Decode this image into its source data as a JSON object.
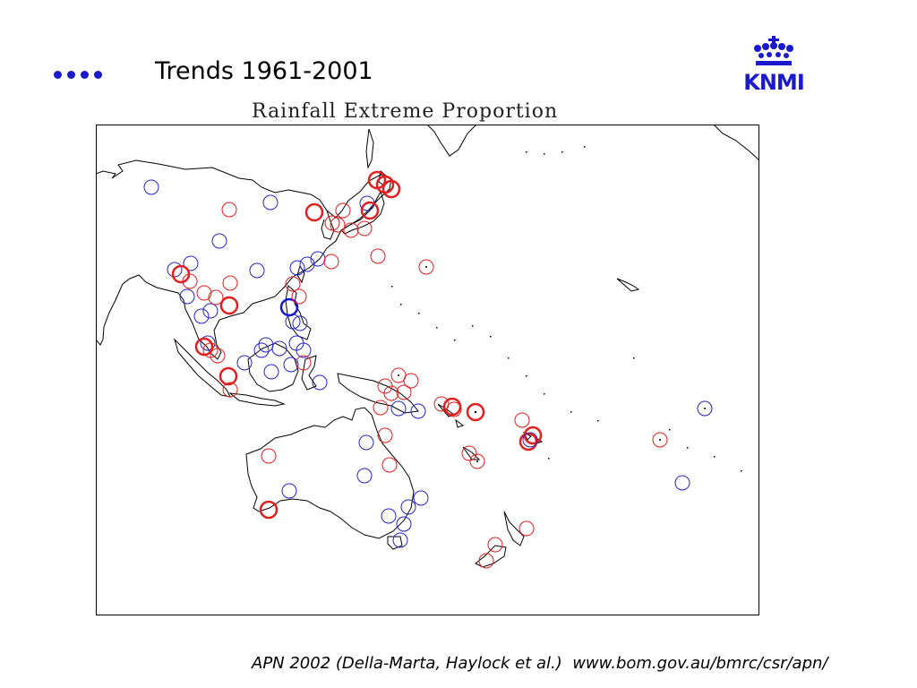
{
  "slide": {
    "title": "Trends 1961-2001",
    "bullet_count": 4,
    "bullet_color": "#1a1acc",
    "footer": "APN 2002 (Della-Marta, Haylock et al.)  www.bom.gov.au/bmrc/csr/apn/"
  },
  "logo": {
    "text": "KNMI",
    "icon": "crown-icon",
    "color": "#1a1acc"
  },
  "map": {
    "title": "Rainfall Extreme Proportion",
    "colors": {
      "increase": "#e02020",
      "decrease": "#2020cc"
    }
  }
}
